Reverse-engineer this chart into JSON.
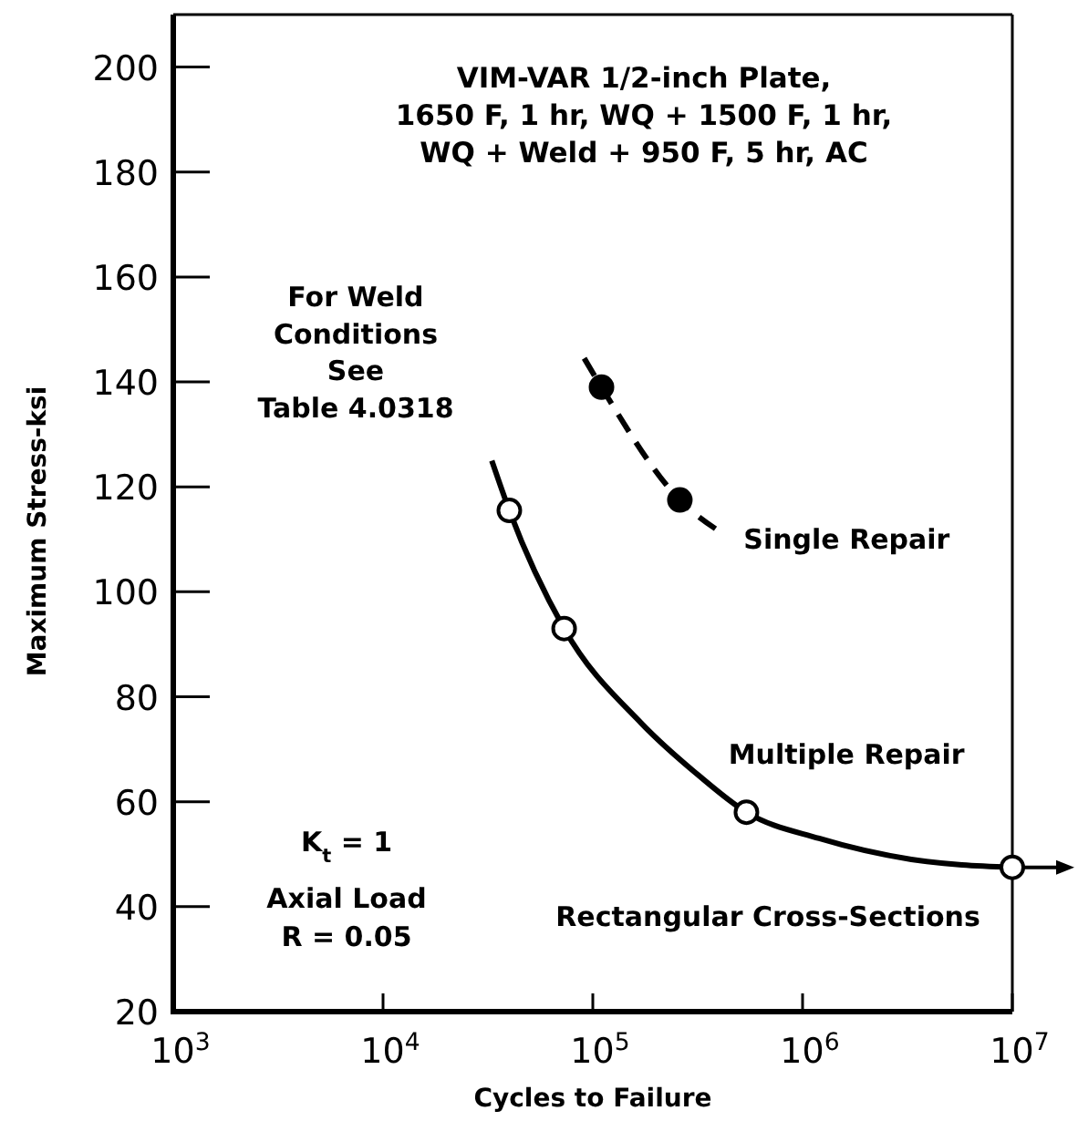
{
  "chart_data": {
    "type": "line",
    "title": "VIM-VAR 1/2-inch Plate,\n1650 F, 1 hr, WQ + 1500 F, 1 hr,\nWQ + Weld + 950 F, 5 hr, AC",
    "xlabel": "Cycles to Failure",
    "ylabel": "Maximum Stress-ksi",
    "annotations": [
      "For Weld\nConditions\nSee\nTable 4.0318",
      "K$_{t}$ = 1",
      "Axial Load",
      "R = 0.05",
      "Rectangular Cross-Sections"
    ],
    "log": "x",
    "xlim": [
      1000,
      10000000
    ],
    "ylim": [
      20,
      210
    ],
    "xticks": [
      {
        "value": 1000,
        "label": "10$^{3}$"
      },
      {
        "value": 10000,
        "label": "10$^{4}$"
      },
      {
        "value": 100000,
        "label": "10$^{5}$"
      },
      {
        "value": 1000000,
        "label": "10$^{6}$"
      },
      {
        "value": 10000000,
        "label": "10$^{7}$"
      }
    ],
    "yticks": [
      20,
      40,
      60,
      80,
      100,
      120,
      140,
      160,
      180,
      200
    ],
    "series": [
      {
        "type": "line",
        "name": "Single Repair",
        "color": "#000000",
        "line_style": "dashed",
        "x": [
          91000,
          110000,
          260000,
          420000
        ],
        "values": [
          144.5,
          139,
          117.5,
          111
        ]
      },
      {
        "type": "scatter",
        "color": "#000000",
        "marker": "circle",
        "x": [
          110000,
          260000
        ],
        "values": [
          139,
          117.5
        ]
      },
      {
        "type": "line",
        "name": "Multiple Repair",
        "color": "#000000",
        "line_style": "solid",
        "x": [
          33000,
          40000,
          73000,
          170000,
          320000,
          540000,
          1200000,
          3300000,
          10000000
        ],
        "values": [
          125,
          115.5,
          93,
          75,
          65,
          58,
          53,
          49,
          47.5
        ]
      },
      {
        "type": "scatter",
        "color": "#ffffff",
        "marker": "circle",
        "x": [
          40000,
          73000,
          540000,
          10000000
        ],
        "values": [
          115.5,
          93,
          58,
          47.5
        ]
      }
    ]
  }
}
